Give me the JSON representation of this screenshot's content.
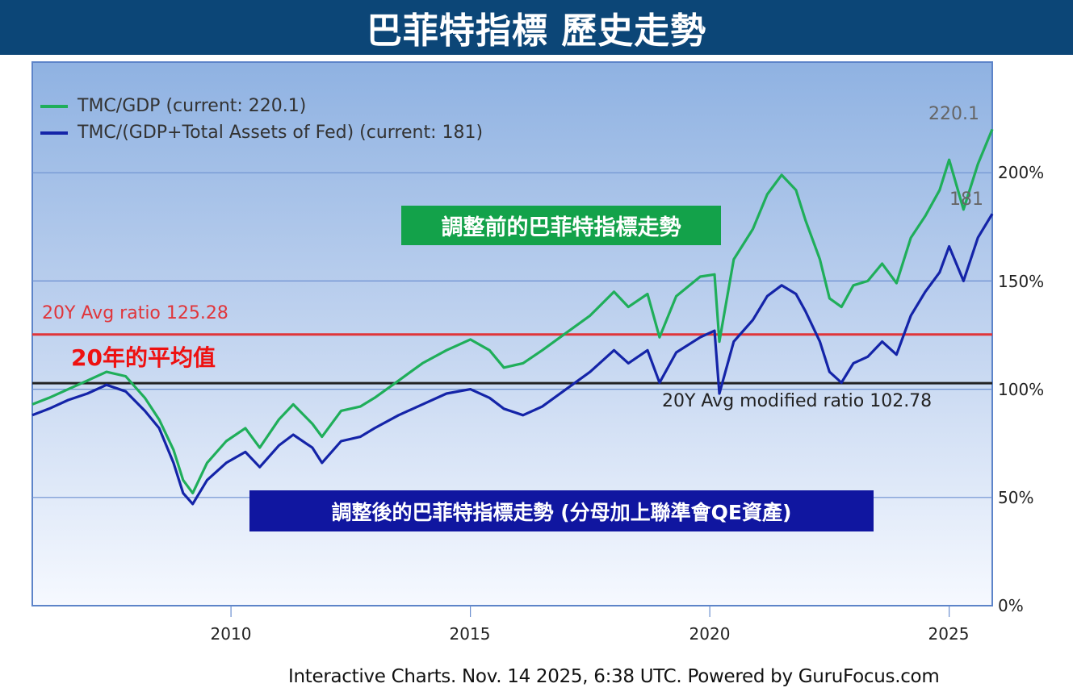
{
  "banner": {
    "title": "巴菲特指標 歷史走勢"
  },
  "legend": {
    "items": [
      {
        "label": "TMC/GDP (current: 220.1)",
        "color": "#1fae5a"
      },
      {
        "label": "TMC/(GDP+Total Assets of Fed) (current: 181)",
        "color": "#1424a8"
      }
    ]
  },
  "annotations": {
    "green_box": "調整前的巴菲特指標走勢",
    "blue_box": "調整後的巴菲特指標走勢 (分母加上聯準會QE資產)",
    "avg_ratio_label": "20Y Avg ratio 125.28",
    "avg_ratio_cn": "20年的平均值",
    "avg_modified_label": "20Y Avg modified ratio 102.78",
    "current_green": "220.1",
    "current_blue": "181"
  },
  "axis": {
    "y_ticks": [
      "200%",
      "150%",
      "100%",
      "50%",
      "0%"
    ],
    "x_ticks": [
      "2010",
      "2015",
      "2020",
      "2025"
    ]
  },
  "footer": {
    "text": "Interactive Charts. Nov. 14 2025, 6:38 UTC. Powered by GuruFocus.com"
  },
  "colors": {
    "banner_bg": "#0c4677",
    "tmc_gdp": "#1fae5a",
    "tmc_gdp_fed": "#1424a8",
    "avg_ratio_line": "#e0353a",
    "avg_modified_line": "#222222",
    "green_box_bg": "#13a24a",
    "blue_box_bg": "#1016a0"
  },
  "chart_data": {
    "type": "line",
    "title": "巴菲特指標 歷史走勢",
    "xlabel": "",
    "ylabel": "",
    "ylim": [
      0,
      245
    ],
    "xlim": [
      2005.85,
      2025.9
    ],
    "grid": true,
    "legend_position": "top-left inside",
    "y_ticks": [
      0,
      50,
      100,
      150,
      200
    ],
    "x_ticks": [
      2010,
      2015,
      2020,
      2025
    ],
    "reference_lines": [
      {
        "label": "20Y Avg ratio 125.28",
        "value": 125.28,
        "color": "#e0353a"
      },
      {
        "label": "20Y Avg modified ratio 102.78",
        "value": 102.78,
        "color": "#222222"
      }
    ],
    "series": [
      {
        "name": "TMC/GDP",
        "current": 220.1,
        "color": "#1fae5a",
        "x": [
          2005.85,
          2006.2,
          2006.6,
          2007.0,
          2007.4,
          2007.8,
          2008.2,
          2008.5,
          2008.8,
          2009.0,
          2009.2,
          2009.5,
          2009.9,
          2010.3,
          2010.6,
          2011.0,
          2011.3,
          2011.7,
          2011.9,
          2012.3,
          2012.7,
          2013.0,
          2013.5,
          2014.0,
          2014.5,
          2015.0,
          2015.4,
          2015.7,
          2016.1,
          2016.5,
          2017.0,
          2017.5,
          2018.0,
          2018.3,
          2018.7,
          2018.95,
          2019.3,
          2019.8,
          2020.1,
          2020.2,
          2020.5,
          2020.9,
          2021.2,
          2021.5,
          2021.8,
          2022.0,
          2022.3,
          2022.5,
          2022.75,
          2023.0,
          2023.3,
          2023.6,
          2023.9,
          2024.2,
          2024.5,
          2024.8,
          2025.0,
          2025.3,
          2025.6,
          2025.9
        ],
        "values": [
          93,
          96,
          100,
          104,
          108,
          106,
          96,
          86,
          72,
          58,
          52,
          66,
          76,
          82,
          73,
          86,
          93,
          84,
          78,
          90,
          92,
          96,
          104,
          112,
          118,
          123,
          118,
          110,
          112,
          118,
          126,
          134,
          145,
          138,
          144,
          124,
          143,
          152,
          153,
          122,
          160,
          174,
          190,
          199,
          192,
          178,
          160,
          142,
          138,
          148,
          150,
          158,
          149,
          170,
          180,
          192,
          206,
          183,
          204,
          220.1
        ]
      },
      {
        "name": "TMC/(GDP+Total Assets of Fed)",
        "current": 181,
        "color": "#1424a8",
        "x": [
          2005.85,
          2006.2,
          2006.6,
          2007.0,
          2007.4,
          2007.8,
          2008.2,
          2008.5,
          2008.8,
          2009.0,
          2009.2,
          2009.5,
          2009.9,
          2010.3,
          2010.6,
          2011.0,
          2011.3,
          2011.7,
          2011.9,
          2012.3,
          2012.7,
          2013.0,
          2013.5,
          2014.0,
          2014.5,
          2015.0,
          2015.4,
          2015.7,
          2016.1,
          2016.5,
          2017.0,
          2017.5,
          2018.0,
          2018.3,
          2018.7,
          2018.95,
          2019.3,
          2019.8,
          2020.1,
          2020.2,
          2020.5,
          2020.9,
          2021.2,
          2021.5,
          2021.8,
          2022.0,
          2022.3,
          2022.5,
          2022.75,
          2023.0,
          2023.3,
          2023.6,
          2023.9,
          2024.2,
          2024.5,
          2024.8,
          2025.0,
          2025.3,
          2025.6,
          2025.9
        ],
        "values": [
          88,
          91,
          95,
          98,
          102,
          99,
          90,
          82,
          66,
          52,
          47,
          58,
          66,
          71,
          64,
          74,
          79,
          73,
          66,
          76,
          78,
          82,
          88,
          93,
          98,
          100,
          96,
          91,
          88,
          92,
          100,
          108,
          118,
          112,
          118,
          103,
          117,
          124,
          127,
          98,
          122,
          132,
          143,
          148,
          144,
          136,
          122,
          108,
          103,
          112,
          115,
          122,
          116,
          134,
          145,
          154,
          166,
          150,
          170,
          181
        ]
      }
    ]
  }
}
